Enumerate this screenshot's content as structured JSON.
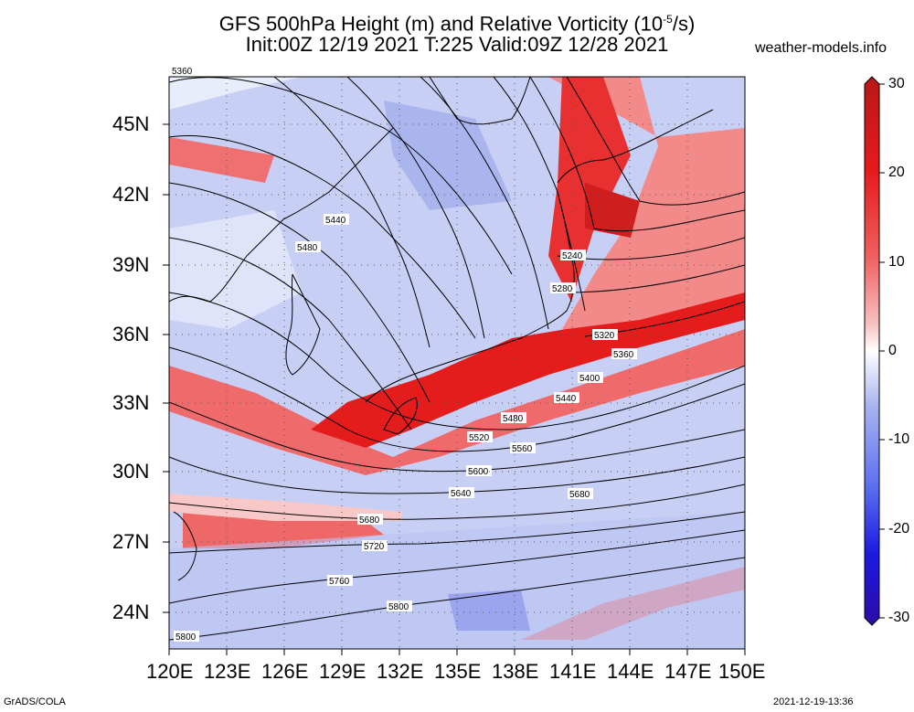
{
  "header": {
    "title_line1_main": "GFS 500hPa Height (m) and Relative Vorticity (10",
    "title_line1_sup": "-5",
    "title_line1_end": "/s)",
    "title_line2": "Init:00Z 12/19 2021 T:225 Valid:09Z 12/28 2021",
    "site": "weather-models.info"
  },
  "footer": {
    "left": "GrADS/COLA",
    "right": "2021-12-19-13:36"
  },
  "map": {
    "lat_labels": [
      "45N",
      "42N",
      "39N",
      "36N",
      "33N",
      "30N",
      "27N",
      "24N"
    ],
    "lon_labels": [
      "120E",
      "123E",
      "126E",
      "129E",
      "132E",
      "135E",
      "138E",
      "141E",
      "144E",
      "147E",
      "150E"
    ],
    "contour_labels": [
      "5360",
      "5440",
      "5480",
      "5240",
      "5280",
      "5320",
      "5360",
      "5400",
      "5440",
      "5480",
      "5520",
      "5560",
      "5600",
      "5640",
      "5680",
      "5680",
      "5720",
      "5760",
      "5800",
      "5800"
    ]
  },
  "colorbar": {
    "labels": [
      "30",
      "20",
      "10",
      "0",
      "-10",
      "-20",
      "-30"
    ],
    "colors": [
      "#b81818",
      "#e61a1a",
      "#f06060",
      "#f7a8a8",
      "#ffffff",
      "#a8b4f0",
      "#5a6ef0",
      "#1a1ae0",
      "#2e0aa8"
    ]
  }
}
